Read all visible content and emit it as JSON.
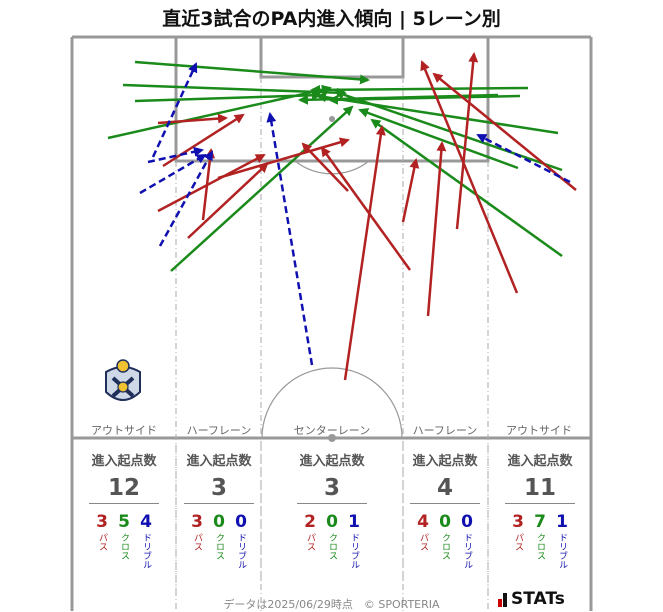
{
  "title": "直近3試合のPA内進入傾向 | 5レーン別",
  "lanes": [
    {
      "key": "out-left",
      "label": "アウトサイド",
      "header": "進入起点数",
      "total": "12",
      "pass": "3",
      "cross": "5",
      "dribble": "4"
    },
    {
      "key": "half-left",
      "label": "ハーフレーン",
      "header": "進入起点数",
      "total": "3",
      "pass": "3",
      "cross": "0",
      "dribble": "0"
    },
    {
      "key": "center",
      "label": "センターレーン",
      "header": "進入起点数",
      "total": "3",
      "pass": "2",
      "cross": "0",
      "dribble": "1"
    },
    {
      "key": "half-right",
      "label": "ハーフレーン",
      "header": "進入起点数",
      "total": "4",
      "pass": "4",
      "cross": "0",
      "dribble": "0"
    },
    {
      "key": "out-right",
      "label": "アウトサイド",
      "header": "進入起点数",
      "total": "11",
      "pass": "3",
      "cross": "7",
      "dribble": "1"
    }
  ],
  "labels": {
    "pass": "パス",
    "cross": "クロス",
    "dribble": "ドリブル"
  },
  "colors": {
    "pass": "#b22222",
    "cross": "#1a8a1a",
    "dribble": "#1010b0",
    "line": "#999999"
  },
  "footer": "データは2025/06/29時点　© SPORTERIA",
  "brand": "STATs",
  "icons": {
    "team_crest": "team-crest-icon",
    "brand_logo": "stats-logo-icon"
  }
}
